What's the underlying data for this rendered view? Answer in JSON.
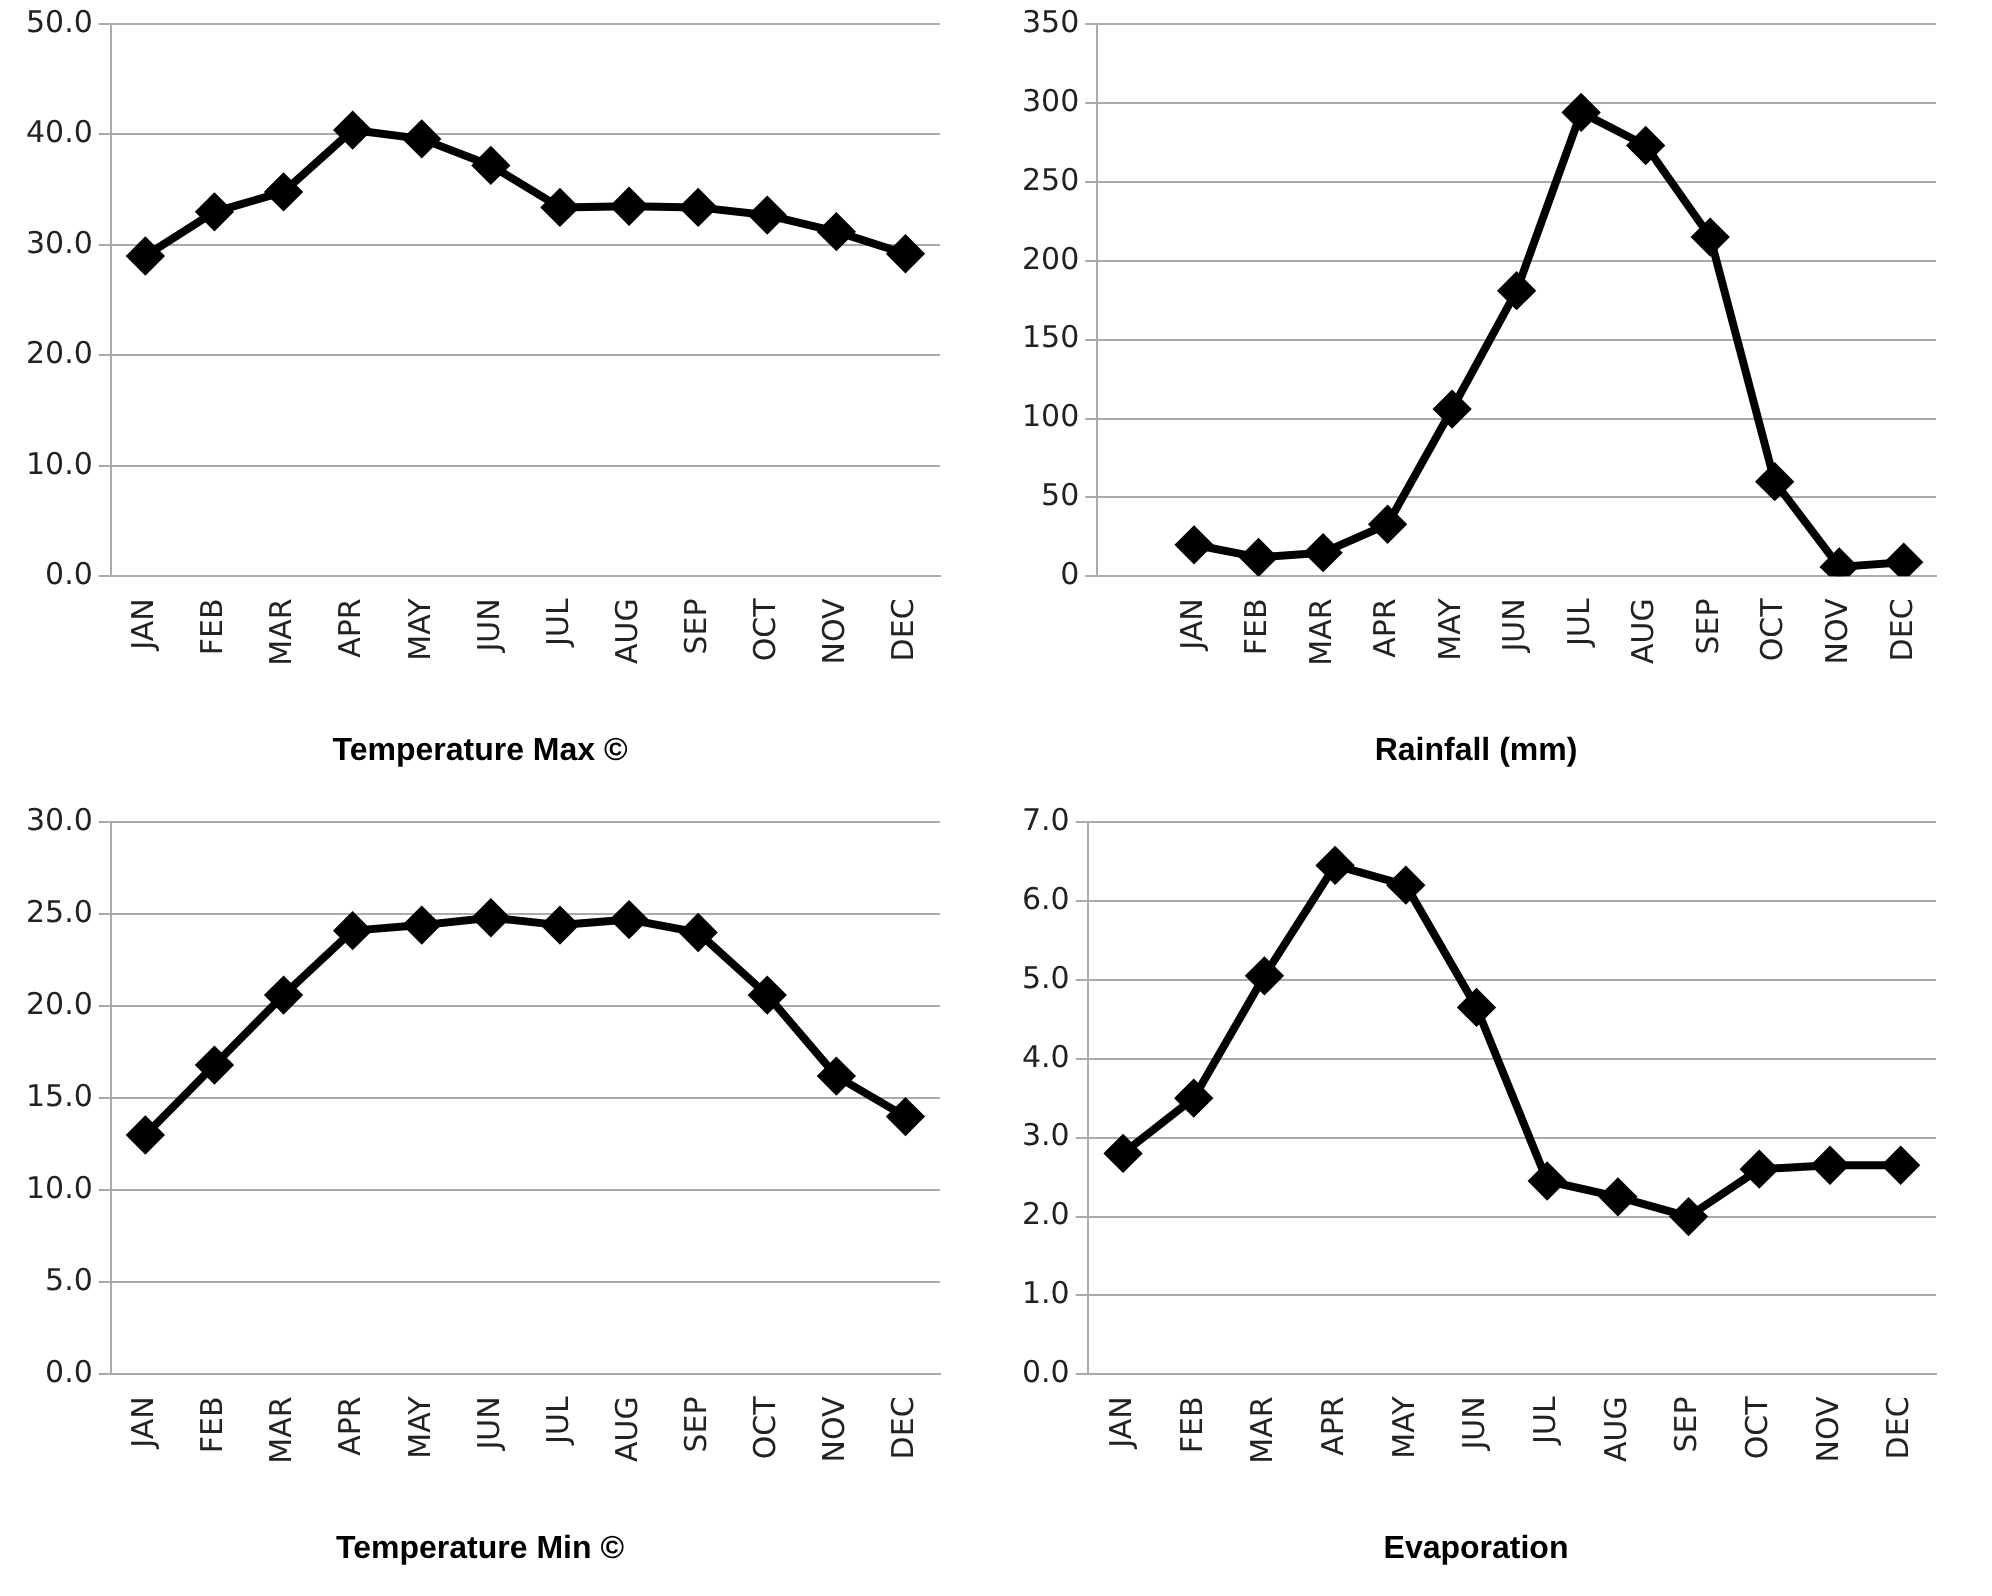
{
  "chart_data": [
    {
      "type": "line",
      "title": "Temperature Max ©",
      "categories": [
        "JAN",
        "FEB",
        "MAR",
        "APR",
        "MAY",
        "JUN",
        "JUL",
        "AUG",
        "SEP",
        "OCT",
        "NOV",
        "DEC"
      ],
      "series": [
        {
          "color": "#000000",
          "values": [
            29.0,
            33.0,
            34.8,
            40.4,
            39.6,
            37.2,
            33.4,
            33.5,
            33.4,
            32.7,
            31.2,
            29.2
          ]
        }
      ],
      "ylim": [
        0,
        50
      ],
      "yticks": [
        {
          "value": 0,
          "label": "0.0"
        },
        {
          "value": 10,
          "label": "10.0"
        },
        {
          "value": 20,
          "label": "20.0"
        },
        {
          "value": 30,
          "label": "30.0"
        },
        {
          "value": 40,
          "label": "40.0"
        },
        {
          "value": 50,
          "label": "50.0"
        }
      ],
      "grid": "y",
      "marker": "diamond",
      "line_style": "solid",
      "legend": false
    },
    {
      "type": "line",
      "title": "Rainfall (mm)",
      "categories": [
        null,
        "JAN",
        "FEB",
        "MAR",
        "APR",
        "MAY",
        "JUN",
        "JUL",
        "AUG",
        "SEP",
        "OCT",
        "NOV",
        "DEC"
      ],
      "series": [
        {
          "color": "#000000",
          "values": [
            null,
            20,
            12,
            15,
            33,
            106,
            181,
            294,
            273,
            215,
            60,
            6,
            9
          ]
        }
      ],
      "ylim": [
        0,
        350
      ],
      "yticks": [
        0,
        50,
        100,
        150,
        200,
        250,
        300,
        350
      ],
      "grid": "y",
      "marker": "diamond",
      "line_style": "solid",
      "legend": false
    },
    {
      "type": "line",
      "title": "Temperature Min ©",
      "categories": [
        "JAN",
        "FEB",
        "MAR",
        "APR",
        "MAY",
        "JUN",
        "JUL",
        "AUG",
        "SEP",
        "OCT",
        "NOV",
        "DEC"
      ],
      "series": [
        {
          "color": "#000000",
          "values": [
            13.0,
            16.8,
            20.6,
            24.1,
            24.4,
            24.8,
            24.4,
            24.7,
            24.0,
            20.6,
            16.2,
            14.0
          ]
        }
      ],
      "ylim": [
        0,
        30
      ],
      "yticks": [
        {
          "value": 0,
          "label": "0.0"
        },
        {
          "value": 5,
          "label": "5.0"
        },
        {
          "value": 10,
          "label": "10.0"
        },
        {
          "value": 15,
          "label": "15.0"
        },
        {
          "value": 20,
          "label": "20.0"
        },
        {
          "value": 25,
          "label": "25.0"
        },
        {
          "value": 30,
          "label": "30.0"
        }
      ],
      "grid": "y",
      "marker": "diamond",
      "line_style": "solid",
      "legend": false
    },
    {
      "type": "line",
      "title": "Evaporation",
      "categories": [
        "JAN",
        "FEB",
        "MAR",
        "APR",
        "MAY",
        "JUN",
        "JUL",
        "AUG",
        "SEP",
        "OCT",
        "NOV",
        "DEC"
      ],
      "series": [
        {
          "color": "#000000",
          "values": [
            2.8,
            3.5,
            5.05,
            6.45,
            6.2,
            4.65,
            2.45,
            2.25,
            2.0,
            2.6,
            2.65,
            2.65
          ]
        }
      ],
      "ylim": [
        0,
        7
      ],
      "yticks": [
        {
          "value": 0,
          "label": "0.0"
        },
        {
          "value": 1,
          "label": "1.0"
        },
        {
          "value": 2,
          "label": "2.0"
        },
        {
          "value": 3,
          "label": "3.0"
        },
        {
          "value": 4,
          "label": "4.0"
        },
        {
          "value": 5,
          "label": "5.0"
        },
        {
          "value": 6,
          "label": "6.0"
        },
        {
          "value": 7,
          "label": "7.0"
        }
      ],
      "grid": "y",
      "marker": "diamond",
      "line_style": "solid",
      "legend": false
    }
  ]
}
